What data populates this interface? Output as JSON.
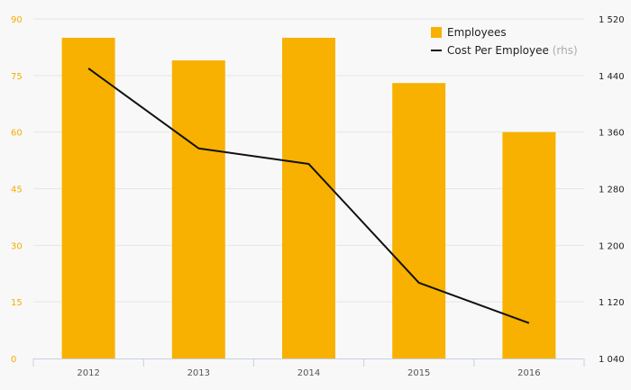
{
  "chart_data": {
    "type": "bar",
    "categories": [
      "2012",
      "2013",
      "2014",
      "2015",
      "2016"
    ],
    "series": [
      {
        "name": "Employees",
        "type": "bar",
        "axis": "left",
        "color": "#f8b100",
        "values": [
          85,
          79,
          85,
          73,
          60
        ]
      },
      {
        "name": "Cost Per Employee",
        "name_suffix": "(rhs)",
        "type": "line",
        "axis": "right",
        "color": "#111111",
        "values": [
          1450,
          1337,
          1315,
          1147,
          1090
        ]
      }
    ],
    "y_left": {
      "min": 0,
      "max": 90,
      "ticks": [
        "0",
        "15",
        "30",
        "45",
        "60",
        "75",
        "90"
      ]
    },
    "y_right": {
      "min": 1040,
      "max": 1520,
      "ticks": [
        "1 040",
        "1 120",
        "1 200",
        "1 280",
        "1 360",
        "1 440",
        "1 520"
      ]
    },
    "grid": true,
    "legend_position": "top-right"
  }
}
